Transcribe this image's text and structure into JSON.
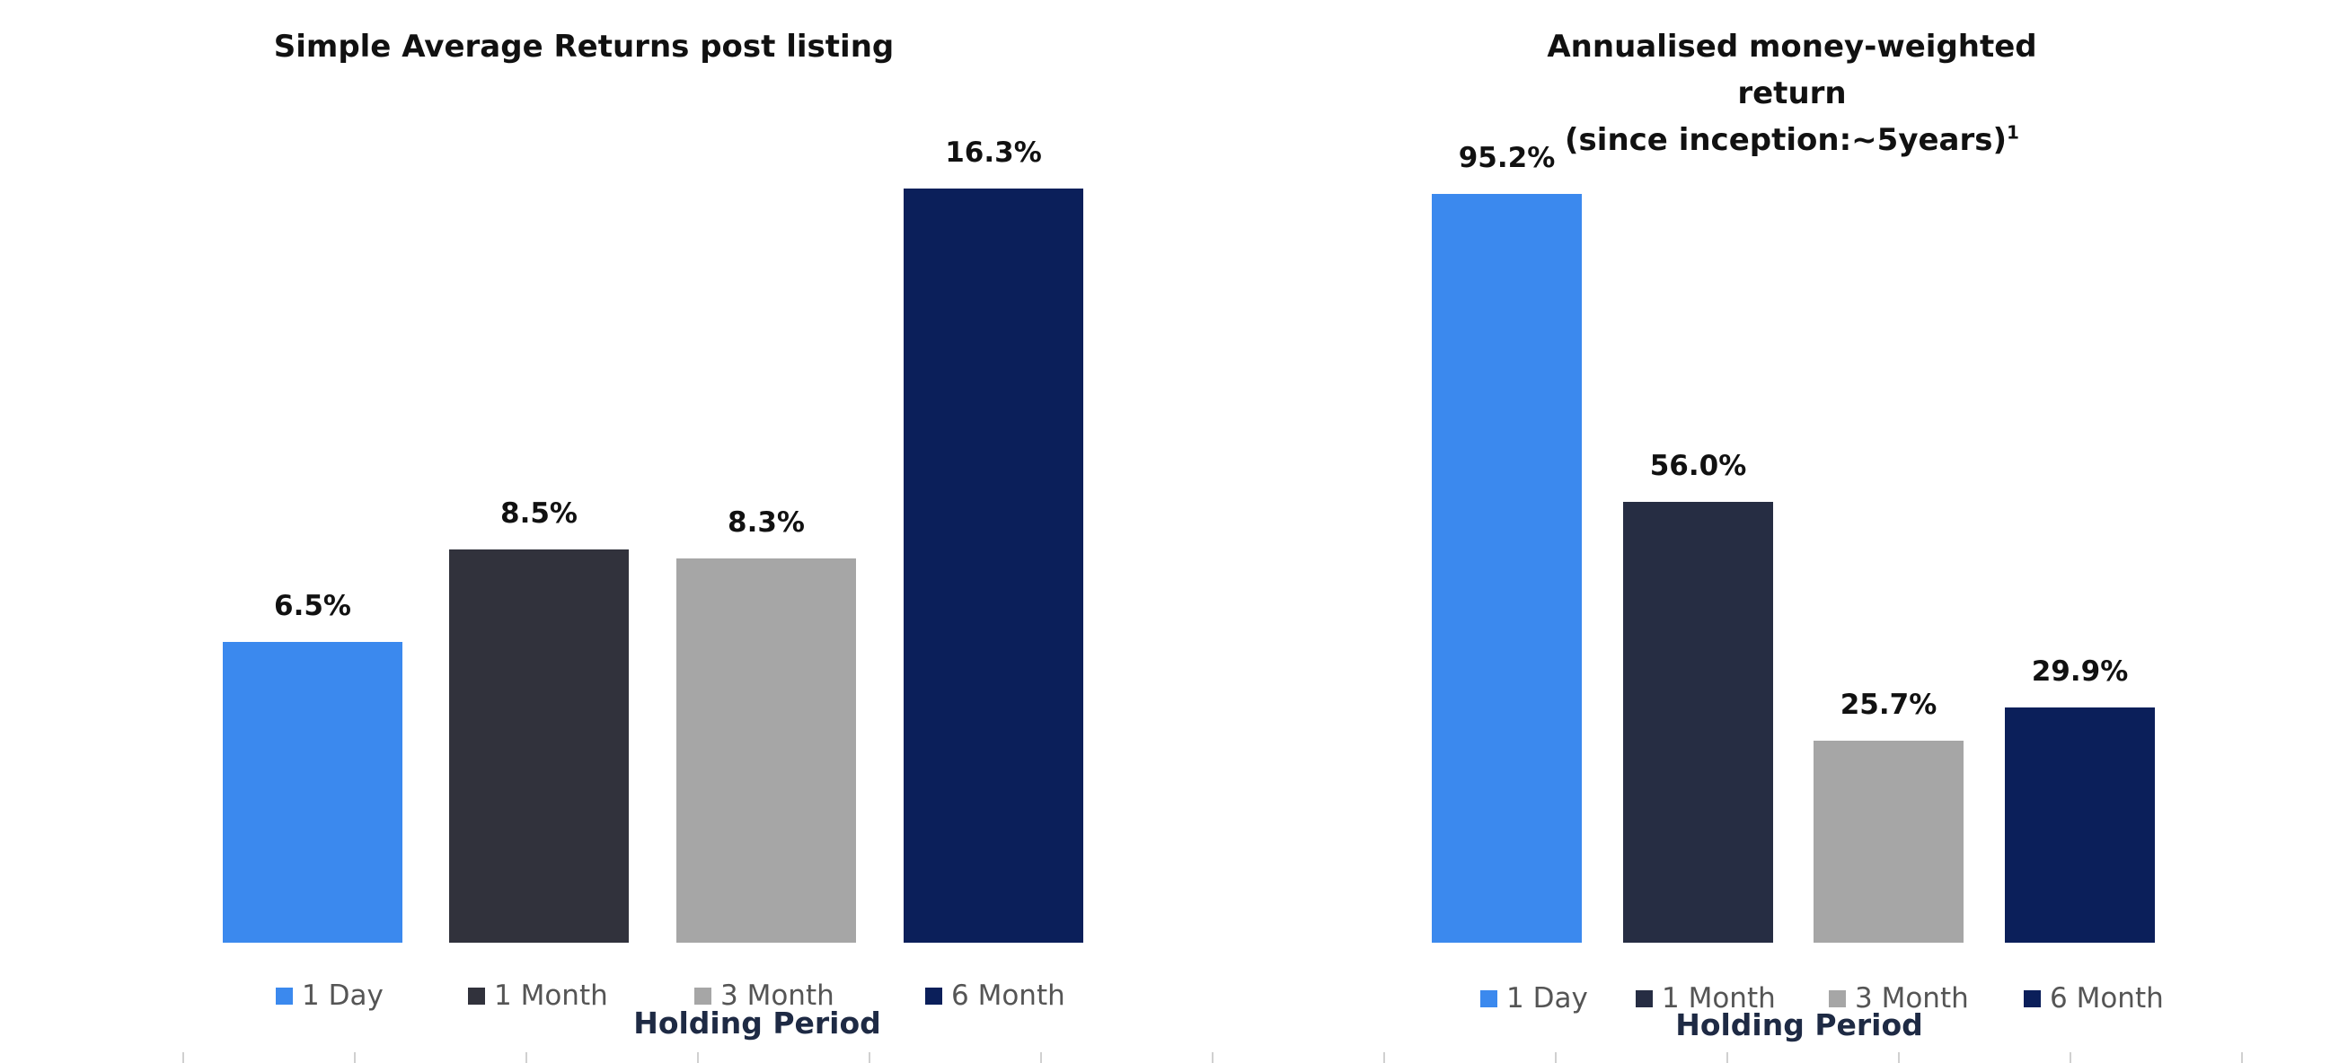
{
  "chart_data": [
    {
      "type": "bar",
      "title": "Simple Average Returns post listing",
      "xlabel": "Holding Period",
      "ylabel": "",
      "categories": [
        "1 Day",
        "1 Month",
        "3 Month",
        "6 Month"
      ],
      "values": [
        6.5,
        8.5,
        8.3,
        16.3
      ],
      "value_labels": [
        "6.5%",
        "8.5%",
        "8.3%",
        "16.3%"
      ],
      "unit": "%",
      "ylim": [
        0,
        16.3
      ],
      "colors": [
        "#3b89ee",
        "#31323c",
        "#a6a6a6",
        "#0b1f5a"
      ],
      "legend_placement": "bottom",
      "grid": false
    },
    {
      "type": "bar",
      "title": "Annualised money-weighted return",
      "title_line2": "(since inception:~5years)",
      "title_footnote": "1",
      "xlabel": "Holding Period",
      "ylabel": "",
      "categories": [
        "1 Day",
        "1 Month",
        "3 Month",
        "6 Month"
      ],
      "values": [
        95.2,
        56.0,
        25.7,
        29.9
      ],
      "value_labels": [
        "95.2%",
        "56.0%",
        "25.7%",
        "29.9%"
      ],
      "unit": "%",
      "ylim": [
        0,
        95.2
      ],
      "colors": [
        "#3b89ee",
        "#262d43",
        "#a6a6a6",
        "#0b1f5a"
      ],
      "legend_placement": "bottom",
      "grid": false
    }
  ]
}
